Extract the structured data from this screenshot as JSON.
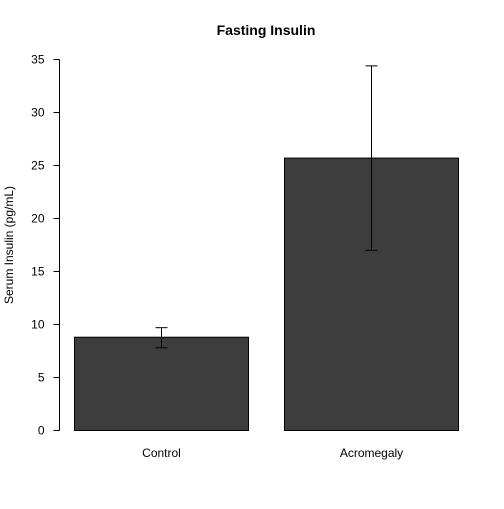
{
  "chart_data": {
    "type": "bar",
    "title": "Fasting Insulin",
    "xlabel": "",
    "ylabel": "Serum Insulin (pg/mL)",
    "categories": [
      "Control",
      "Acromegaly"
    ],
    "values": [
      8.8,
      25.7
    ],
    "error_low": [
      7.8,
      17.0
    ],
    "error_high": [
      9.7,
      34.4
    ],
    "ylim": [
      0,
      35
    ],
    "yticks": [
      "0",
      "5",
      "10",
      "15",
      "20",
      "25",
      "30",
      "35"
    ],
    "grid": false,
    "legend": "none",
    "colors": {
      "bar": "#3d3d3d",
      "bar_outline": "#000000",
      "error_bar": "#000000",
      "axis": "#000000"
    }
  }
}
